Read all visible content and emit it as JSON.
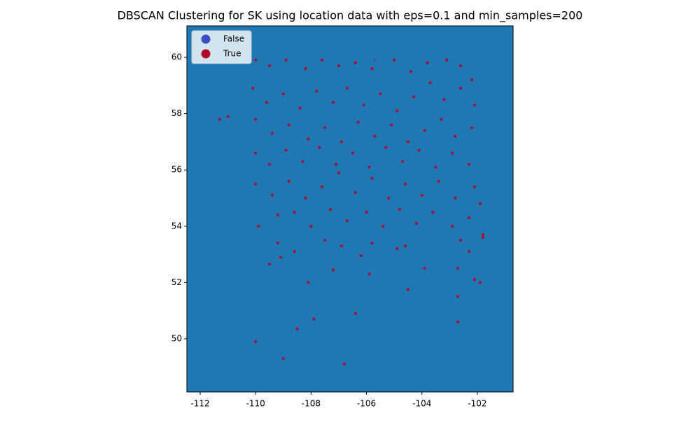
{
  "chart_data": {
    "type": "scatter",
    "title": "DBSCAN Clustering for SK using location data with eps=0.1 and min_samples=200",
    "xlim": [
      -112.48,
      -100.71
    ],
    "ylim": [
      48.11,
      61.12
    ],
    "xticks": [
      -112,
      -110,
      -108,
      -106,
      -104,
      -102
    ],
    "yticks": [
      50,
      52,
      54,
      56,
      58,
      60
    ],
    "facecolor": "#1f77b4",
    "legend": "upper left",
    "series": [
      {
        "name": "False",
        "color": "#3b4cc0",
        "x": [
          -105.7
        ],
        "y": [
          59.9
        ]
      },
      {
        "name": "True",
        "color": "#b40426",
        "x": [
          -110.0,
          -109.5,
          -108.9,
          -108.2,
          -107.6,
          -107.0,
          -106.4,
          -105.8,
          -105.0,
          -104.4,
          -103.8,
          -103.1,
          -102.6,
          -102.2,
          -110.1,
          -109.6,
          -109.0,
          -108.4,
          -107.8,
          -107.2,
          -106.7,
          -106.1,
          -105.5,
          -104.9,
          -104.3,
          -103.7,
          -103.2,
          -102.6,
          -102.1,
          -110.0,
          -109.4,
          -108.8,
          -108.1,
          -107.5,
          -106.9,
          -106.3,
          -105.7,
          -105.1,
          -104.5,
          -103.9,
          -103.3,
          -102.8,
          -102.2,
          -110.0,
          -109.5,
          -108.9,
          -108.3,
          -107.7,
          -107.1,
          -106.5,
          -105.9,
          -105.3,
          -104.7,
          -104.1,
          -103.5,
          -102.9,
          -102.3,
          -110.0,
          -109.4,
          -108.8,
          -108.2,
          -107.6,
          -107.0,
          -106.4,
          -105.8,
          -105.2,
          -104.6,
          -104.0,
          -103.4,
          -102.8,
          -102.1,
          -109.9,
          -109.2,
          -108.6,
          -108.0,
          -107.3,
          -106.7,
          -106.0,
          -105.4,
          -104.8,
          -104.2,
          -103.6,
          -102.9,
          -102.3,
          -101.9,
          -109.2,
          -108.6,
          -107.5,
          -106.9,
          -106.2,
          -105.8,
          -104.9,
          -104.6,
          -102.6,
          -102.3,
          -101.8,
          -111.3,
          -111.0,
          -110.0,
          -109.0,
          -107.9,
          -108.5,
          -106.8,
          -108.1,
          -106.4,
          -104.5,
          -102.7,
          -102.7,
          -102.1,
          -101.9,
          -103.9,
          -102.7,
          -109.5,
          -109.1,
          -107.2,
          -105.9,
          -101.8
        ],
        "y": [
          59.9,
          59.7,
          59.9,
          59.6,
          59.9,
          59.7,
          59.8,
          59.6,
          59.9,
          59.5,
          59.8,
          59.9,
          59.7,
          59.2,
          58.9,
          58.4,
          58.7,
          58.2,
          58.8,
          58.4,
          58.9,
          58.3,
          58.7,
          58.1,
          58.6,
          59.1,
          58.5,
          58.9,
          58.3,
          57.8,
          57.3,
          57.6,
          57.1,
          57.5,
          57.0,
          57.7,
          57.2,
          57.6,
          57.0,
          57.4,
          57.8,
          57.2,
          57.5,
          56.6,
          56.2,
          56.7,
          56.3,
          56.8,
          56.2,
          56.6,
          56.1,
          56.8,
          56.3,
          56.7,
          56.1,
          56.6,
          56.2,
          55.5,
          55.1,
          55.6,
          55.0,
          55.4,
          55.9,
          55.2,
          55.7,
          55.0,
          55.5,
          55.1,
          55.6,
          55.0,
          55.4,
          54.0,
          54.4,
          54.5,
          54.0,
          54.6,
          54.2,
          54.5,
          54.0,
          54.6,
          54.1,
          54.5,
          54.0,
          54.3,
          54.8,
          53.4,
          53.1,
          53.5,
          53.3,
          52.95,
          53.4,
          53.2,
          53.3,
          53.5,
          53.1,
          53.7,
          57.8,
          57.9,
          49.9,
          49.3,
          50.7,
          50.35,
          49.1,
          52.0,
          50.9,
          51.75,
          51.5,
          50.6,
          52.1,
          52.0,
          52.5,
          52.5,
          52.65,
          52.9,
          52.45,
          52.3,
          53.6
        ]
      }
    ]
  }
}
